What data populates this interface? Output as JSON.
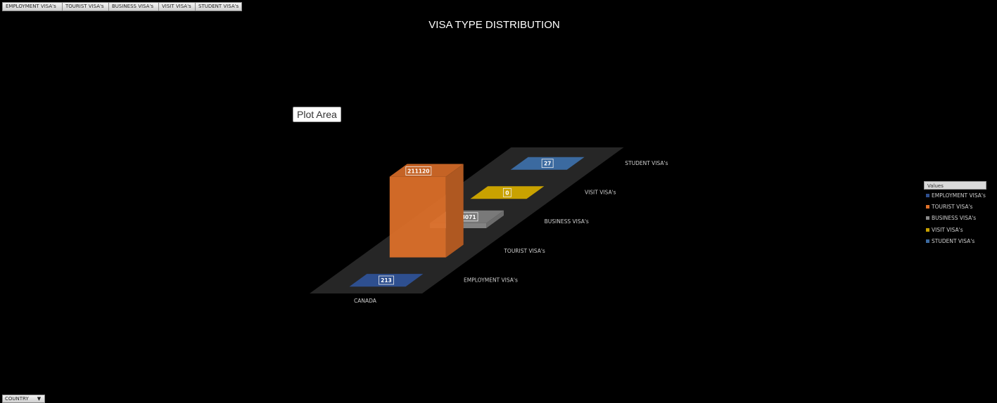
{
  "field_buttons": [
    "EMPLOYMENT VISA's",
    "TOURIST VISA's",
    "BUSINESS VISA's",
    "VISIT VISA's",
    "STUDENT VISA's"
  ],
  "tooltip": "Plot Area",
  "legend": {
    "title": "Values"
  },
  "country_filter": {
    "label": "COUNTRY",
    "arrow": "▼"
  },
  "chart_data": {
    "type": "bar",
    "title": "VISA TYPE DISTRIBUTION",
    "categories": [
      "CANADA"
    ],
    "series": [
      {
        "name": "EMPLOYMENT VISA's",
        "values": [
          213
        ],
        "color": "#2e4f8f"
      },
      {
        "name": "TOURIST VISA's",
        "values": [
          211120
        ],
        "color": "#e0712a"
      },
      {
        "name": "BUSINESS VISA's",
        "values": [
          13071
        ],
        "color": "#8a8a8a"
      },
      {
        "name": "VISIT VISA's",
        "values": [
          0
        ],
        "color": "#c9a200"
      },
      {
        "name": "STUDENT VISA's",
        "values": [
          27
        ],
        "color": "#3b6aa0"
      }
    ],
    "legend_position": "right",
    "grid": false,
    "data_labels": true
  }
}
